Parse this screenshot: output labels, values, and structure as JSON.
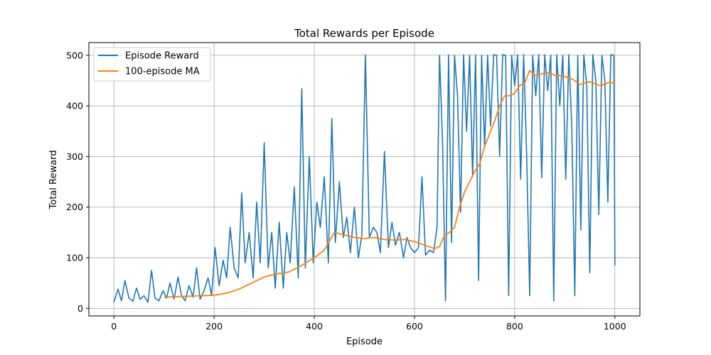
{
  "chart_data": {
    "type": "line",
    "title": "Total Rewards per Episode",
    "xlabel": "Episode",
    "ylabel": "Total Reward",
    "xlim": [
      -50,
      1050
    ],
    "ylim": [
      -15,
      525
    ],
    "xticks": [
      0,
      200,
      400,
      600,
      800,
      1000
    ],
    "yticks": [
      0,
      100,
      200,
      300,
      400,
      500
    ],
    "grid": true,
    "legend_position": "top-left",
    "series": [
      {
        "name": "Episode Reward",
        "color": "#1f77b4",
        "x": [
          0,
          8,
          15,
          22,
          30,
          38,
          45,
          52,
          60,
          68,
          75,
          82,
          90,
          98,
          105,
          112,
          120,
          128,
          135,
          142,
          150,
          158,
          165,
          172,
          180,
          188,
          195,
          202,
          210,
          218,
          225,
          232,
          240,
          248,
          255,
          262,
          270,
          278,
          285,
          292,
          300,
          308,
          315,
          322,
          330,
          338,
          345,
          352,
          360,
          368,
          375,
          382,
          390,
          398,
          405,
          412,
          420,
          428,
          435,
          442,
          450,
          458,
          465,
          472,
          480,
          488,
          495,
          502,
          510,
          518,
          525,
          532,
          540,
          548,
          555,
          562,
          570,
          578,
          585,
          592,
          600,
          608,
          615,
          622,
          630,
          638,
          645,
          650,
          656,
          662,
          668,
          674,
          680,
          686,
          692,
          698,
          704,
          710,
          716,
          722,
          728,
          734,
          740,
          746,
          752,
          758,
          764,
          770,
          776,
          782,
          788,
          794,
          800,
          806,
          812,
          818,
          824,
          830,
          836,
          842,
          848,
          854,
          860,
          866,
          872,
          878,
          884,
          890,
          896,
          902,
          908,
          914,
          920,
          926,
          932,
          938,
          944,
          950,
          956,
          962,
          968,
          974,
          980,
          986,
          992,
          998,
          1000
        ],
        "y": [
          12,
          38,
          15,
          55,
          20,
          14,
          40,
          18,
          25,
          12,
          75,
          20,
          15,
          35,
          20,
          50,
          18,
          62,
          25,
          15,
          45,
          22,
          80,
          18,
          35,
          60,
          25,
          120,
          45,
          95,
          60,
          160,
          80,
          60,
          228,
          90,
          150,
          60,
          210,
          90,
          327,
          80,
          150,
          40,
          170,
          40,
          150,
          90,
          240,
          60,
          434,
          80,
          300,
          90,
          210,
          160,
          260,
          90,
          375,
          130,
          250,
          140,
          180,
          110,
          200,
          100,
          145,
          501,
          140,
          160,
          150,
          110,
          310,
          120,
          170,
          125,
          150,
          100,
          140,
          120,
          110,
          120,
          260,
          105,
          115,
          110,
          160,
          500,
          330,
          15,
          501,
          130,
          500,
          420,
          190,
          501,
          350,
          500,
          260,
          501,
          55,
          500,
          320,
          500,
          360,
          501,
          500,
          300,
          501,
          500,
          25,
          500,
          440,
          501,
          255,
          501,
          300,
          25,
          500,
          420,
          501,
          258,
          501,
          430,
          500,
          15,
          501,
          400,
          500,
          255,
          501,
          360,
          25,
          500,
          155,
          501,
          440,
          70,
          501,
          450,
          185,
          500,
          450,
          210,
          501,
          500,
          85
        ]
      },
      {
        "name": "100-episode MA",
        "color": "#ff7f0e",
        "x": [
          100,
          125,
          150,
          175,
          200,
          225,
          250,
          275,
          300,
          325,
          350,
          375,
          400,
          420,
          440,
          460,
          480,
          500,
          520,
          540,
          560,
          580,
          600,
          620,
          640,
          650,
          660,
          670,
          680,
          690,
          700,
          710,
          720,
          730,
          740,
          750,
          760,
          770,
          780,
          790,
          800,
          810,
          820,
          830,
          840,
          850,
          860,
          870,
          880,
          890,
          900,
          910,
          920,
          930,
          940,
          950,
          960,
          970,
          980,
          990,
          1000
        ],
        "y": [
          22,
          23,
          24,
          25,
          26,
          30,
          38,
          50,
          62,
          68,
          72,
          85,
          100,
          115,
          150,
          145,
          140,
          138,
          140,
          136,
          135,
          136,
          132,
          125,
          118,
          122,
          145,
          150,
          160,
          200,
          230,
          250,
          270,
          285,
          320,
          345,
          370,
          400,
          420,
          420,
          425,
          440,
          445,
          470,
          460,
          462,
          465,
          466,
          460,
          460,
          458,
          455,
          450,
          442,
          445,
          448,
          444,
          440,
          443,
          447,
          444
        ]
      }
    ]
  }
}
